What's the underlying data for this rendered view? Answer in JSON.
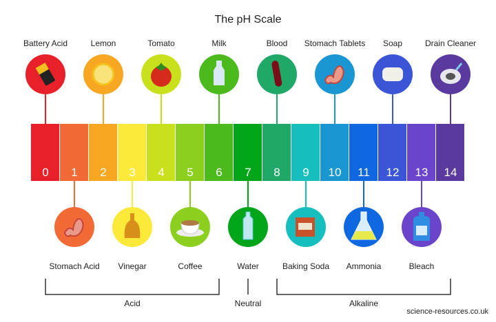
{
  "title": "The pH Scale",
  "scale": {
    "values": [
      "0",
      "1",
      "2",
      "3",
      "4",
      "5",
      "6",
      "7",
      "8",
      "9",
      "10",
      "11",
      "12",
      "13",
      "14"
    ],
    "colors": [
      "#e8202a",
      "#f26a36",
      "#f7a722",
      "#fde93a",
      "#c9e11c",
      "#8ccf1e",
      "#4cb91c",
      "#00a51a",
      "#1fa868",
      "#16bfbd",
      "#1a96d2",
      "#1068e0",
      "#3a55d6",
      "#6a45cc",
      "#5b3aa0"
    ]
  },
  "top_items": [
    {
      "label": "Battery Acid",
      "ph": 0,
      "icon": "battery-icon"
    },
    {
      "label": "Lemon",
      "ph": 2,
      "icon": "lemon-icon"
    },
    {
      "label": "Tomato",
      "ph": 4,
      "icon": "tomato-icon"
    },
    {
      "label": "Milk",
      "ph": 6,
      "icon": "milk-bottle-icon"
    },
    {
      "label": "Blood",
      "ph": 8,
      "icon": "blood-tube-icon"
    },
    {
      "label": "Stomach Tablets",
      "ph": 10,
      "icon": "stomach-icon"
    },
    {
      "label": "Soap",
      "ph": 12,
      "icon": "soap-icon"
    },
    {
      "label": "Drain Cleaner",
      "ph": 14,
      "icon": "drain-icon"
    }
  ],
  "bottom_items": [
    {
      "label": "Stomach Acid",
      "ph": 1,
      "icon": "stomach-icon"
    },
    {
      "label": "Vinegar",
      "ph": 3,
      "icon": "vinegar-bottle-icon"
    },
    {
      "label": "Coffee",
      "ph": 5,
      "icon": "coffee-cup-icon"
    },
    {
      "label": "Water",
      "ph": 7,
      "icon": "water-bottle-icon"
    },
    {
      "label": "Baking Soda",
      "ph": 9,
      "icon": "baking-soda-box-icon"
    },
    {
      "label": "Ammonia",
      "ph": 11,
      "icon": "flask-icon"
    },
    {
      "label": "Bleach",
      "ph": 13,
      "icon": "bleach-bottle-icon"
    }
  ],
  "groups": [
    {
      "label": "Acid",
      "from": 0,
      "to": 6
    },
    {
      "label": "Neutral",
      "from": 7,
      "to": 7
    },
    {
      "label": "Alkaline",
      "from": 8,
      "to": 14
    }
  ],
  "credit": "science-resources.co.uk"
}
